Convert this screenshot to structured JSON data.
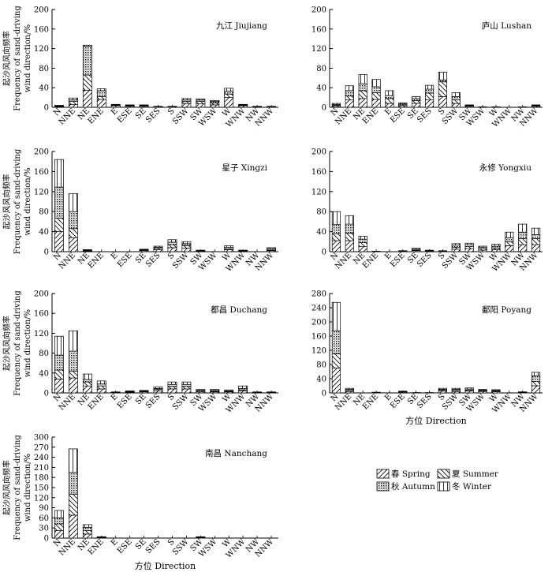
{
  "chart_data": [
    {
      "type": "bar",
      "stacked": true,
      "title": "九江 Jiujiang",
      "ylabel_lines": [
        "起沙风风向频率",
        "Frequency of sand-driving",
        "wind direction/%"
      ],
      "xlabel": "",
      "ylim": [
        0,
        200
      ],
      "yticks": [
        0,
        40,
        80,
        120,
        160,
        200
      ],
      "categories": [
        "N",
        "NNE",
        "NE",
        "ENE",
        "E",
        "ESE",
        "SE",
        "SES",
        "S",
        "SSW",
        "SW",
        "WSW",
        "W",
        "WNW",
        "NW",
        "NNW"
      ],
      "series": [
        {
          "name": "春 Spring",
          "values": [
            1,
            6,
            35,
            16,
            3,
            2,
            2,
            1,
            1,
            8,
            7,
            5,
            20,
            3,
            1,
            1
          ]
        },
        {
          "name": "夏 Summer",
          "values": [
            1,
            6,
            31,
            6,
            1,
            1,
            1,
            0,
            0,
            4,
            5,
            4,
            7,
            1,
            0,
            0
          ]
        },
        {
          "name": "秋 Autumn",
          "values": [
            1,
            3,
            59,
            12,
            1,
            1,
            1,
            0,
            0,
            3,
            3,
            3,
            6,
            1,
            0,
            0
          ]
        },
        {
          "name": "冬 Winter",
          "values": [
            1,
            4,
            2,
            4,
            1,
            1,
            1,
            1,
            1,
            3,
            2,
            2,
            6,
            1,
            1,
            1
          ]
        }
      ]
    },
    {
      "type": "bar",
      "stacked": true,
      "title": "庐山 Lushan",
      "ylabel_lines": [],
      "xlabel": "",
      "ylim": [
        0,
        200
      ],
      "yticks": [
        0,
        40,
        80,
        120,
        160,
        200
      ],
      "categories": [
        "N",
        "NNE",
        "NE",
        "ENE",
        "E",
        "ESE",
        "SE",
        "SES",
        "S",
        "SSW",
        "SW",
        "WSW",
        "W",
        "WNW",
        "NW",
        "NNW"
      ],
      "series": [
        {
          "name": "春 Spring",
          "values": [
            2,
            15,
            18,
            16,
            8,
            3,
            8,
            15,
            22,
            8,
            2,
            1,
            1,
            0,
            1,
            2
          ]
        },
        {
          "name": "夏 Summer",
          "values": [
            2,
            8,
            16,
            14,
            10,
            2,
            6,
            14,
            30,
            7,
            1,
            0,
            0,
            0,
            0,
            1
          ]
        },
        {
          "name": "秋 Autumn",
          "values": [
            2,
            11,
            14,
            12,
            6,
            2,
            4,
            8,
            4,
            7,
            1,
            0,
            0,
            0,
            0,
            1
          ]
        },
        {
          "name": "冬 Winter",
          "values": [
            2,
            10,
            19,
            15,
            10,
            2,
            4,
            8,
            16,
            8,
            1,
            0,
            0,
            0,
            0,
            1
          ]
        }
      ]
    },
    {
      "type": "bar",
      "stacked": true,
      "title": "星子 Xingzi",
      "ylabel_lines": [
        "起沙风风向频率",
        "Frequency of sand-driving",
        "wind direction/%"
      ],
      "xlabel": "",
      "ylim": [
        0,
        200
      ],
      "yticks": [
        0,
        40,
        80,
        120,
        160,
        200
      ],
      "categories": [
        "N",
        "NNE",
        "NE",
        "ENE",
        "E",
        "ESE",
        "SE",
        "SES",
        "S",
        "SSW",
        "SW",
        "WSW",
        "W",
        "WNW",
        "NW",
        "NNW"
      ],
      "series": [
        {
          "name": "春 Spring",
          "values": [
            40,
            28,
            1,
            0,
            0,
            0,
            2,
            4,
            8,
            7,
            1,
            0,
            4,
            1,
            0,
            2
          ]
        },
        {
          "name": "夏 Summer",
          "values": [
            27,
            18,
            1,
            0,
            0,
            0,
            1,
            3,
            6,
            5,
            1,
            0,
            2,
            0,
            0,
            1
          ]
        },
        {
          "name": "秋 Autumn",
          "values": [
            62,
            34,
            1,
            0,
            0,
            0,
            1,
            2,
            5,
            4,
            0,
            0,
            3,
            1,
            0,
            3
          ]
        },
        {
          "name": "冬 Winter",
          "values": [
            55,
            36,
            1,
            0,
            0,
            0,
            1,
            2,
            5,
            4,
            1,
            0,
            3,
            1,
            0,
            2
          ]
        }
      ]
    },
    {
      "type": "bar",
      "stacked": true,
      "title": "永修 Yongxiu",
      "ylabel_lines": [],
      "xlabel": "",
      "ylim": [
        0,
        200
      ],
      "yticks": [
        0,
        40,
        80,
        120,
        160,
        200
      ],
      "categories": [
        "N",
        "NNE",
        "NE",
        "ENE",
        "E",
        "ESE",
        "SE",
        "SES",
        "S",
        "SSW",
        "SW",
        "WSW",
        "W",
        "WNW",
        "NW",
        "NNW"
      ],
      "series": [
        {
          "name": "春 Spring",
          "values": [
            22,
            22,
            10,
            1,
            0,
            1,
            2,
            1,
            1,
            5,
            6,
            3,
            4,
            12,
            14,
            14
          ]
        },
        {
          "name": "夏 Summer",
          "values": [
            14,
            15,
            8,
            0,
            0,
            0,
            1,
            1,
            0,
            4,
            4,
            3,
            3,
            8,
            12,
            12
          ]
        },
        {
          "name": "秋 Autumn",
          "values": [
            18,
            18,
            7,
            0,
            0,
            0,
            2,
            1,
            0,
            4,
            4,
            3,
            4,
            8,
            13,
            8
          ]
        },
        {
          "name": "冬 Winter",
          "values": [
            26,
            17,
            6,
            0,
            0,
            1,
            2,
            0,
            1,
            3,
            3,
            2,
            4,
            11,
            16,
            13
          ]
        }
      ]
    },
    {
      "type": "bar",
      "stacked": true,
      "title": "都昌 Duchang",
      "ylabel_lines": [
        "起沙风风向频率",
        "Frequency of sand-driving",
        "wind direction/%"
      ],
      "xlabel": "",
      "ylim": [
        0,
        200
      ],
      "yticks": [
        0,
        40,
        80,
        120,
        160,
        200
      ],
      "categories": [
        "N",
        "NNE",
        "NE",
        "ENE",
        "E",
        "ESE",
        "SE",
        "SES",
        "S",
        "SSW",
        "SW",
        "WSW",
        "W",
        "WNW",
        "NW",
        "NNW"
      ],
      "series": [
        {
          "name": "春 Spring",
          "values": [
            28,
            30,
            14,
            8,
            1,
            1,
            2,
            4,
            8,
            8,
            2,
            2,
            2,
            4,
            1,
            1
          ]
        },
        {
          "name": "夏 Summer",
          "values": [
            18,
            14,
            8,
            6,
            0,
            1,
            1,
            3,
            5,
            5,
            2,
            1,
            1,
            2,
            0,
            0
          ]
        },
        {
          "name": "秋 Autumn",
          "values": [
            30,
            40,
            5,
            4,
            0,
            1,
            1,
            2,
            4,
            4,
            1,
            2,
            1,
            3,
            0,
            0
          ]
        },
        {
          "name": "冬 Winter",
          "values": [
            38,
            41,
            11,
            6,
            1,
            1,
            1,
            3,
            5,
            5,
            2,
            2,
            2,
            5,
            1,
            1
          ]
        }
      ]
    },
    {
      "type": "bar",
      "stacked": true,
      "title": "鄱阳 Poyang",
      "ylabel_lines": [],
      "xlabel": "方位 Direction",
      "ylim": [
        0,
        280
      ],
      "yticks": [
        0,
        40,
        80,
        120,
        160,
        200,
        240,
        280
      ],
      "categories": [
        "N",
        "NNE",
        "NE",
        "ENE",
        "E",
        "ESE",
        "SE",
        "SES",
        "S",
        "SSW",
        "SW",
        "WSW",
        "W",
        "WNW",
        "NW",
        "NNW"
      ],
      "series": [
        {
          "name": "春 Spring",
          "values": [
            70,
            4,
            0,
            1,
            0,
            2,
            1,
            1,
            5,
            4,
            5,
            4,
            3,
            0,
            1,
            20
          ]
        },
        {
          "name": "夏 Summer",
          "values": [
            40,
            3,
            0,
            0,
            0,
            1,
            0,
            0,
            3,
            3,
            3,
            2,
            2,
            0,
            1,
            12
          ]
        },
        {
          "name": "秋 Autumn",
          "values": [
            65,
            3,
            0,
            0,
            0,
            1,
            0,
            0,
            2,
            3,
            3,
            2,
            2,
            0,
            0,
            16
          ]
        },
        {
          "name": "冬 Winter",
          "values": [
            80,
            3,
            0,
            1,
            0,
            1,
            0,
            0,
            3,
            3,
            3,
            2,
            2,
            0,
            1,
            10
          ]
        }
      ]
    },
    {
      "type": "bar",
      "stacked": true,
      "title": "南昌 Nanchang",
      "ylabel_lines": [
        "起沙风风向频率",
        "Frequency of sand-driving",
        "wind direction/%"
      ],
      "xlabel": "方位 Direction",
      "ylim": [
        0,
        300
      ],
      "yticks": [
        0,
        30,
        60,
        90,
        120,
        150,
        180,
        210,
        240,
        270,
        300
      ],
      "categories": [
        "N",
        "NNE",
        "NE",
        "ENE",
        "E",
        "ESE",
        "SE",
        "SES",
        "S",
        "SSW",
        "SW",
        "WSW",
        "W",
        "WNW",
        "NW",
        "NNW"
      ],
      "series": [
        {
          "name": "春 Spring",
          "values": [
            22,
            68,
            12,
            1,
            0,
            0,
            0,
            0,
            0,
            0,
            1,
            0,
            0,
            0,
            0,
            0
          ]
        },
        {
          "name": "夏 Summer",
          "values": [
            20,
            62,
            10,
            1,
            0,
            0,
            0,
            0,
            0,
            0,
            1,
            0,
            0,
            0,
            0,
            0
          ]
        },
        {
          "name": "秋 Autumn",
          "values": [
            18,
            65,
            10,
            1,
            0,
            0,
            0,
            0,
            0,
            0,
            1,
            0,
            0,
            0,
            0,
            0
          ]
        },
        {
          "name": "冬 Winter",
          "values": [
            22,
            70,
            8,
            1,
            0,
            0,
            0,
            0,
            0,
            0,
            1,
            0,
            0,
            0,
            0,
            0
          ]
        }
      ]
    }
  ],
  "legend": [
    {
      "label": "春 Spring",
      "pattern": "diag-right"
    },
    {
      "label": "夏 Summer",
      "pattern": "diag-left"
    },
    {
      "label": "秋 Autumn",
      "pattern": "dots"
    },
    {
      "label": "冬 Winter",
      "pattern": "vertical"
    }
  ]
}
